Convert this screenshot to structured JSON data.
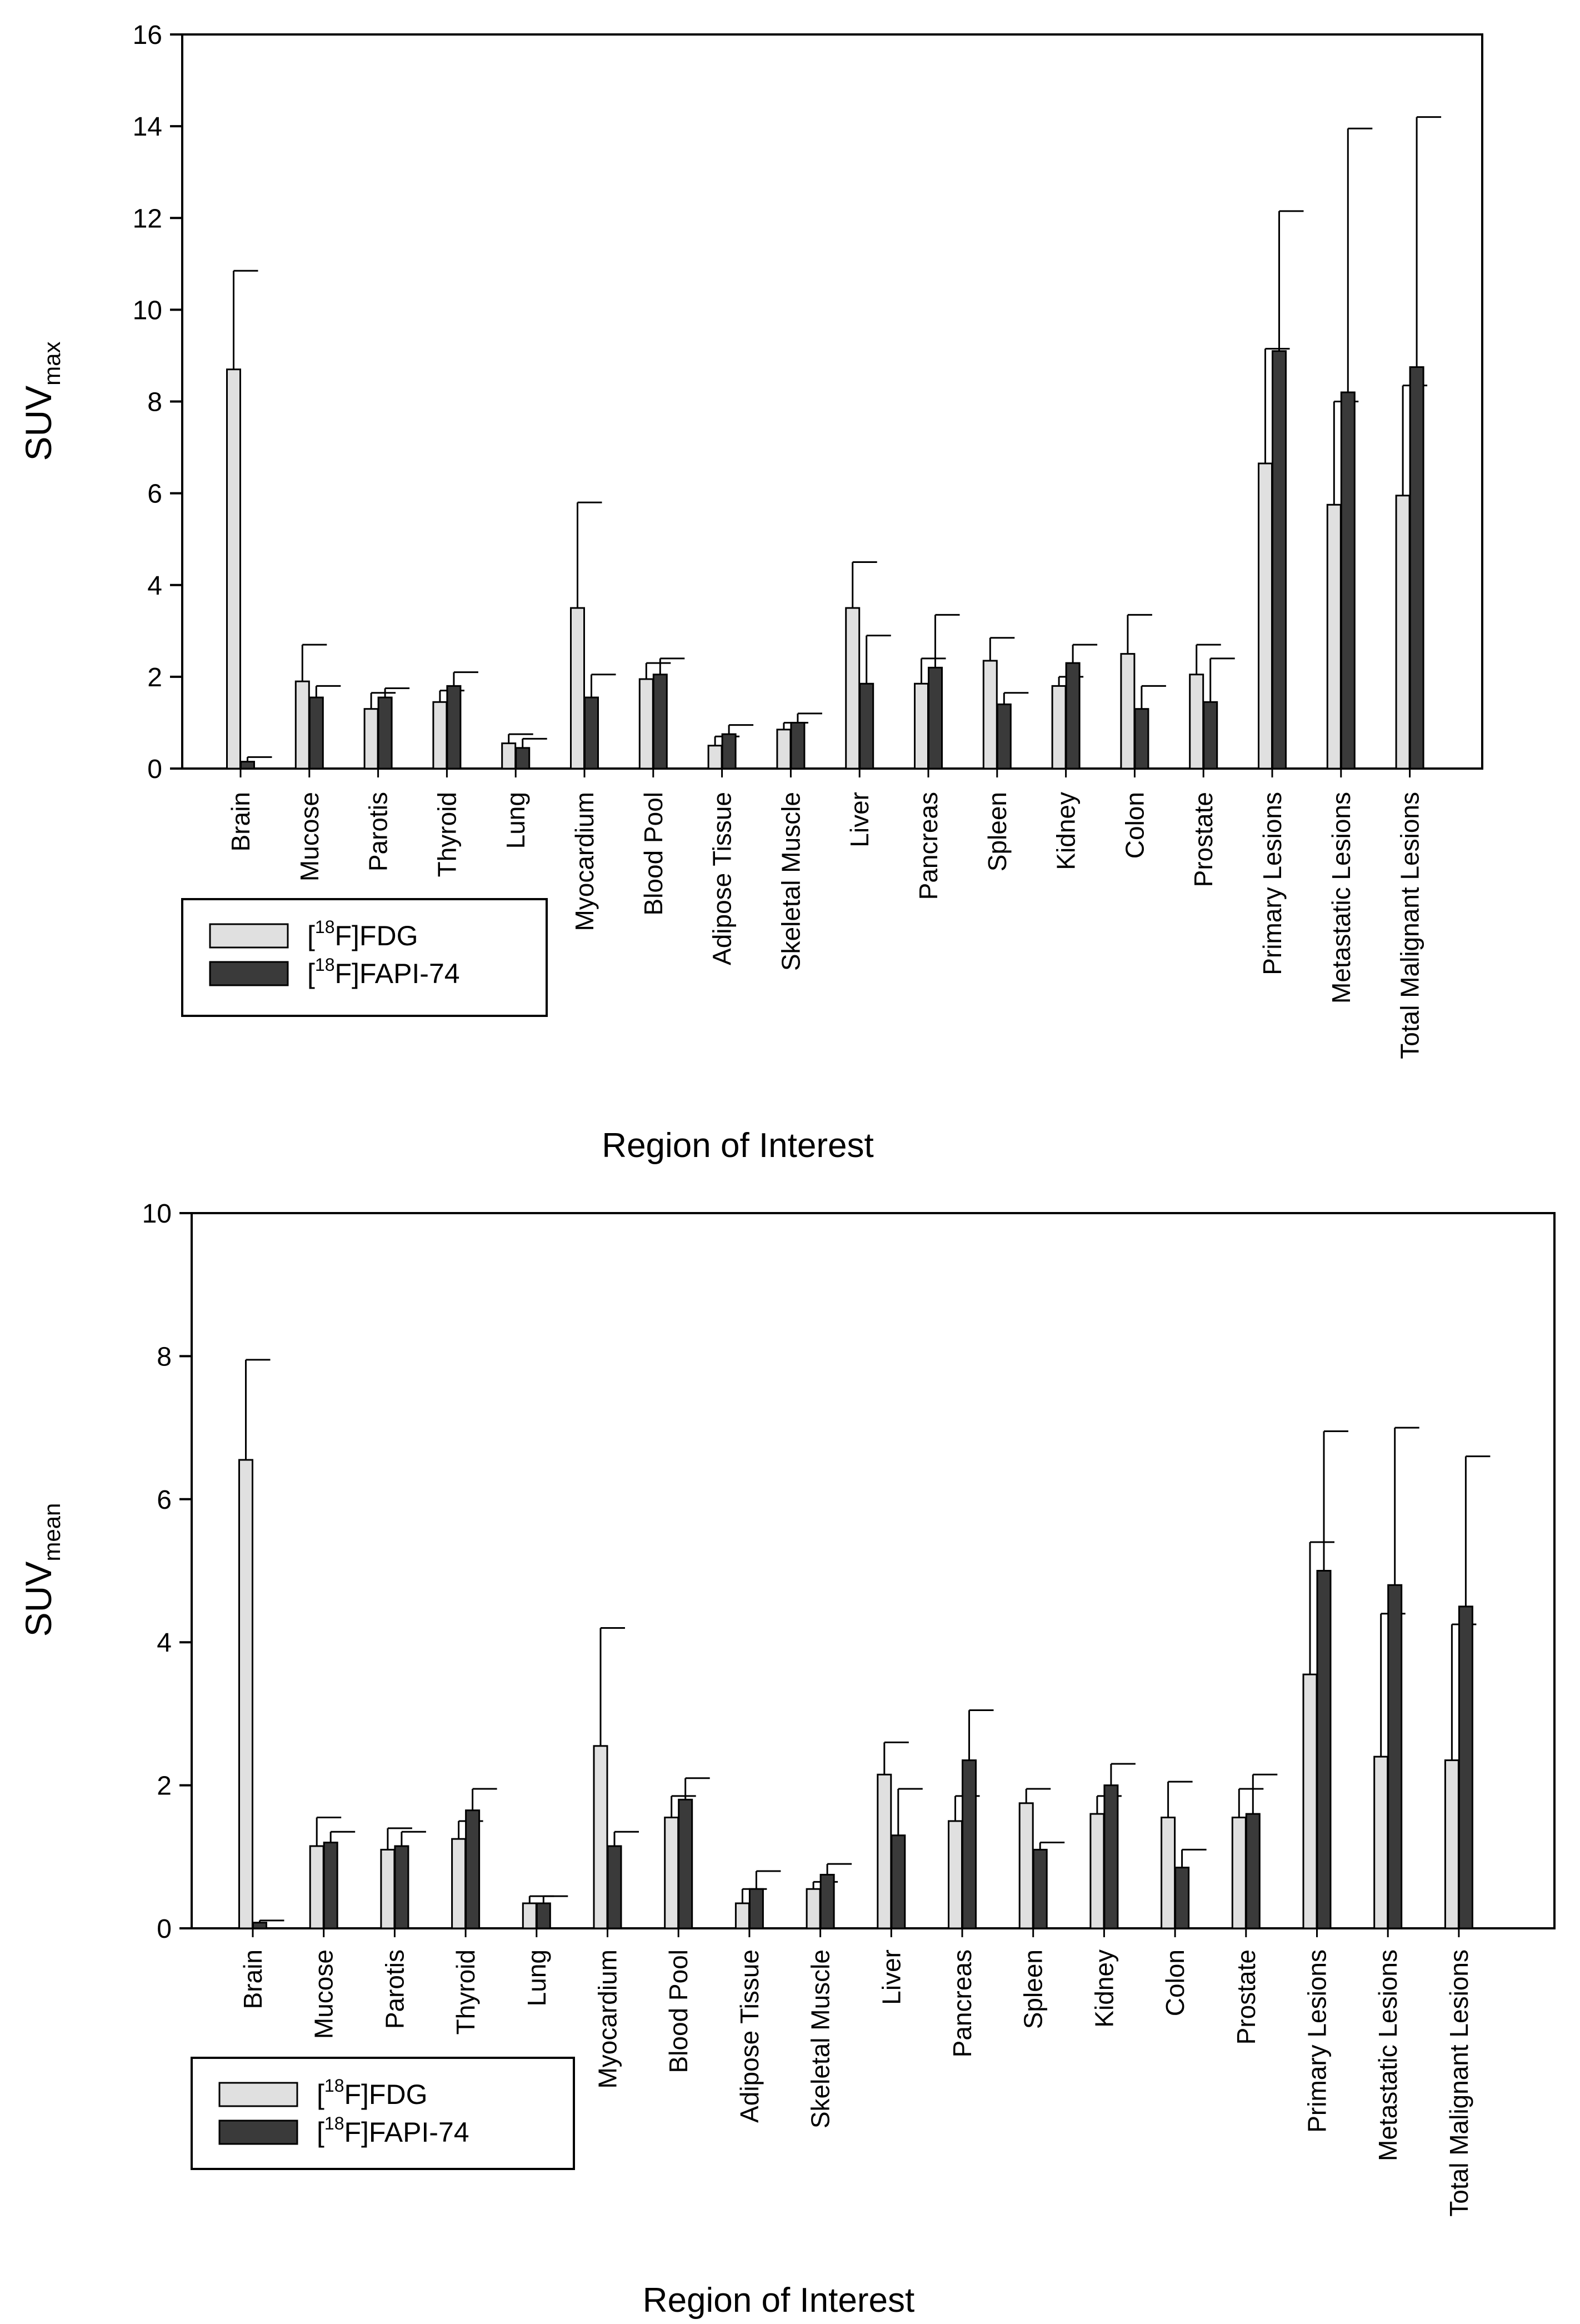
{
  "chart_data": [
    {
      "type": "bar",
      "id": "top",
      "ylabel_main": "SUV",
      "ylabel_sub": "max",
      "xlabel": "Region of Interest",
      "ylim": [
        0,
        16
      ],
      "yticks": [
        0,
        2,
        4,
        6,
        8,
        10,
        12,
        14,
        16
      ],
      "categories": [
        "Brain",
        "Mucose",
        "Parotis",
        "Thyroid",
        "Lung",
        "Myocardium",
        "Blood Pool",
        "Adipose Tissue",
        "Skeletal Muscle",
        "Liver",
        "Pancreas",
        "Spleen",
        "Kidney",
        "Colon",
        "Prostate",
        "Primary Lesions",
        "Metastatic Lesions",
        "Total Malignant Lesions"
      ],
      "series": [
        {
          "name": "FDG",
          "color": "#e0e0e0",
          "values": [
            8.7,
            1.9,
            1.3,
            1.45,
            0.55,
            3.5,
            1.95,
            0.5,
            0.85,
            3.5,
            1.85,
            2.35,
            1.8,
            2.5,
            2.05,
            6.65,
            5.75,
            5.95
          ],
          "errors": [
            2.15,
            0.8,
            0.35,
            0.25,
            0.2,
            2.3,
            0.35,
            0.2,
            0.15,
            1.0,
            0.55,
            0.5,
            0.2,
            0.85,
            0.65,
            2.5,
            2.25,
            2.4
          ]
        },
        {
          "name": "FAPI-74",
          "color": "#3a3a3a",
          "values": [
            0.15,
            1.55,
            1.55,
            1.8,
            0.45,
            1.55,
            2.05,
            0.75,
            1.0,
            1.85,
            2.2,
            1.4,
            2.3,
            1.3,
            1.45,
            9.1,
            8.2,
            8.75
          ],
          "errors": [
            0.1,
            0.25,
            0.2,
            0.3,
            0.2,
            0.5,
            0.35,
            0.2,
            0.2,
            1.05,
            1.15,
            0.25,
            0.4,
            0.5,
            0.95,
            3.05,
            5.75,
            5.45
          ]
        }
      ],
      "legend": [
        {
          "pre": "[",
          "sup": "18",
          "post": "F]FDG",
          "color": "#e0e0e0"
        },
        {
          "pre": "[",
          "sup": "18",
          "post": "F]FAPI-74",
          "color": "#3a3a3a"
        }
      ],
      "legend_position": "bottom-left below axis"
    },
    {
      "type": "bar",
      "id": "bottom",
      "ylabel_main": "SUV",
      "ylabel_sub": "mean",
      "xlabel": "Region of Interest",
      "ylim": [
        0,
        10
      ],
      "yticks": [
        0,
        2,
        4,
        6,
        8,
        10
      ],
      "categories": [
        "Brain",
        "Mucose",
        "Parotis",
        "Thyroid",
        "Lung",
        "Myocardium",
        "Blood Pool",
        "Adipose Tissue",
        "Skeletal Muscle",
        "Liver",
        "Pancreas",
        "Spleen",
        "Kidney",
        "Colon",
        "Prostate",
        "Primary Lesions",
        "Metastatic Lesions",
        "Total Malignant Lesions"
      ],
      "series": [
        {
          "name": "FDG",
          "color": "#e0e0e0",
          "values": [
            6.55,
            1.15,
            1.1,
            1.25,
            0.35,
            2.55,
            1.55,
            0.35,
            0.55,
            2.15,
            1.5,
            1.75,
            1.6,
            1.55,
            1.55,
            3.55,
            2.4,
            2.35
          ],
          "errors": [
            1.4,
            0.4,
            0.3,
            0.25,
            0.1,
            1.65,
            0.3,
            0.2,
            0.1,
            0.45,
            0.35,
            0.2,
            0.25,
            0.5,
            0.4,
            1.85,
            2.0,
            1.9
          ]
        },
        {
          "name": "FAPI-74",
          "color": "#3a3a3a",
          "values": [
            0.08,
            1.2,
            1.15,
            1.65,
            0.35,
            1.15,
            1.8,
            0.55,
            0.75,
            1.3,
            2.35,
            1.1,
            2.0,
            0.85,
            1.6,
            5.0,
            4.8,
            4.5
          ],
          "errors": [
            0.03,
            0.15,
            0.2,
            0.3,
            0.1,
            0.2,
            0.3,
            0.25,
            0.15,
            0.65,
            0.7,
            0.1,
            0.3,
            0.25,
            0.55,
            1.95,
            2.2,
            2.1
          ]
        }
      ],
      "legend": [
        {
          "pre": "[",
          "sup": "18",
          "post": "F]FDG",
          "color": "#e0e0e0"
        },
        {
          "pre": "[",
          "sup": "18",
          "post": "F]FAPI-74",
          "color": "#3a3a3a"
        }
      ],
      "legend_position": "bottom-left below axis"
    }
  ]
}
